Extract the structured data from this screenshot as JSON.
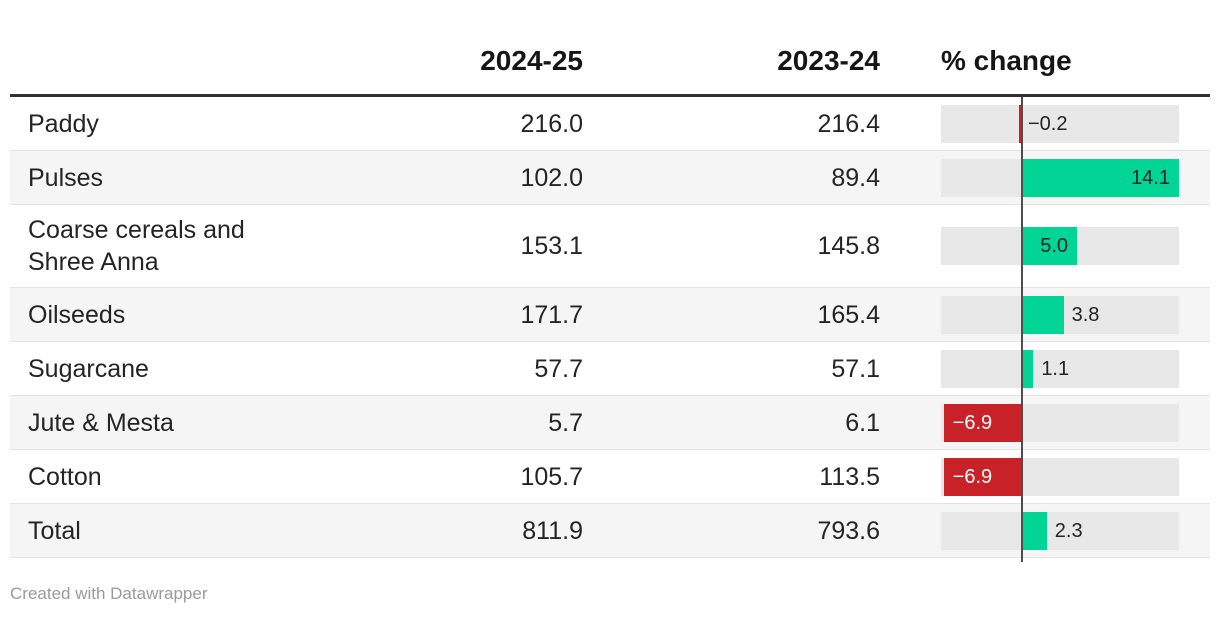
{
  "header": {
    "col_label": "",
    "col_2024": "2024-25",
    "col_2023": "2023-24",
    "col_change": "% change"
  },
  "table": {
    "rows": [
      {
        "label": "Paddy",
        "v2024": "216.0",
        "v2023": "216.4",
        "change": -0.2,
        "change_label": "−0.2"
      },
      {
        "label": "Pulses",
        "v2024": "102.0",
        "v2023": "89.4",
        "change": 14.1,
        "change_label": "14.1"
      },
      {
        "label": "Coarse cereals and Shree Anna",
        "v2024": "153.1",
        "v2023": "145.8",
        "change": 5.0,
        "change_label": "5.0"
      },
      {
        "label": "Oilseeds",
        "v2024": "171.7",
        "v2023": "165.4",
        "change": 3.8,
        "change_label": "3.8"
      },
      {
        "label": "Sugarcane",
        "v2024": "57.7",
        "v2023": "57.1",
        "change": 1.1,
        "change_label": "1.1"
      },
      {
        "label": "Jute & Mesta",
        "v2024": "5.7",
        "v2023": "6.1",
        "change": -6.9,
        "change_label": "−6.9"
      },
      {
        "label": "Cotton",
        "v2024": "105.7",
        "v2023": "113.5",
        "change": -6.9,
        "change_label": "−6.9"
      },
      {
        "label": "Total",
        "v2024": "811.9",
        "v2023": "793.6",
        "change": 2.3,
        "change_label": "2.3"
      }
    ]
  },
  "footer": {
    "credit": "Created with Datawrapper"
  },
  "colors": {
    "positive_bar": "#00d596",
    "negative_bar": "#c82127",
    "track": "#e8e8e8",
    "stripe": "#f5f5f5",
    "axis_line": "#4d4d4d"
  },
  "chart_data": {
    "type": "table",
    "title": "",
    "columns": [
      "",
      "2024-25",
      "2023-24",
      "% change"
    ],
    "categories": [
      "Paddy",
      "Pulses",
      "Coarse cereals and Shree Anna",
      "Oilseeds",
      "Sugarcane",
      "Jute & Mesta",
      "Cotton",
      "Total"
    ],
    "series": [
      {
        "name": "2024-25",
        "values": [
          216.0,
          102.0,
          153.1,
          171.7,
          57.7,
          5.7,
          105.7,
          811.9
        ]
      },
      {
        "name": "2023-24",
        "values": [
          216.4,
          89.4,
          145.8,
          165.4,
          57.1,
          6.1,
          113.5,
          793.6
        ]
      },
      {
        "name": "% change",
        "values": [
          -0.2,
          14.1,
          5.0,
          3.8,
          1.1,
          -6.9,
          -6.9,
          2.3
        ]
      }
    ],
    "bar_column": "% change",
    "xlim": [
      -7.1,
      14.1
    ],
    "legend_position": "none",
    "grid": false
  }
}
